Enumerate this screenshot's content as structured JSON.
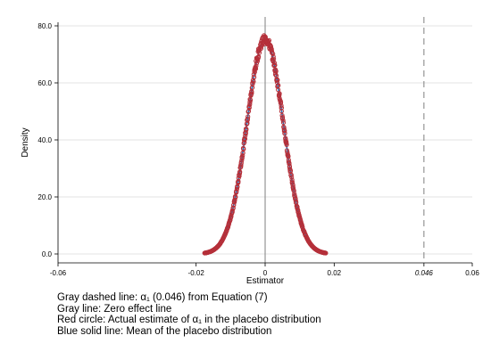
{
  "chart_data": {
    "type": "line",
    "xlabel": "Estimator",
    "ylabel": "Density",
    "xlim": [
      -0.06,
      0.06
    ],
    "ylim": [
      0,
      80
    ],
    "x_ticks": [
      {
        "value": -0.06,
        "label": "-0.06"
      },
      {
        "value": -0.02,
        "label": "-0.02"
      },
      {
        "value": 0,
        "label": "0"
      },
      {
        "value": 0.02,
        "label": "0.02"
      },
      {
        "value": 0.046,
        "label": "0.046",
        "italic": true
      },
      {
        "value": 0.06,
        "label": "0.06"
      }
    ],
    "y_ticks": [
      {
        "value": 0,
        "label": "0.0"
      },
      {
        "value": 20,
        "label": "20.0"
      },
      {
        "value": 40,
        "label": "40.0"
      },
      {
        "value": 60,
        "label": "60.0"
      },
      {
        "value": 80,
        "label": "80.0"
      }
    ],
    "grid": true,
    "reference_lines": {
      "zero_effect_x": 0,
      "actual_estimate_x": 0.046
    },
    "density_mean": 0,
    "density_sd": 0.0053,
    "density_peak": 75.3,
    "density_xrange": [
      -0.0175,
      0.0175
    ],
    "colors": {
      "mean_line": "#2a6bb0",
      "circles": "#b5303a",
      "zero_line": "#7f7f7f",
      "dashed_line": "#7f7f7f",
      "grid": "#e3e3e3"
    }
  },
  "notes": [
    "Gray dashed line: α₁ (0.046) from Equation (7)",
    "Gray line: Zero effect line",
    "Red circle: Actual estimate of α₁ in the placebo distribution",
    "Blue solid line: Mean of the placebo distribution"
  ]
}
